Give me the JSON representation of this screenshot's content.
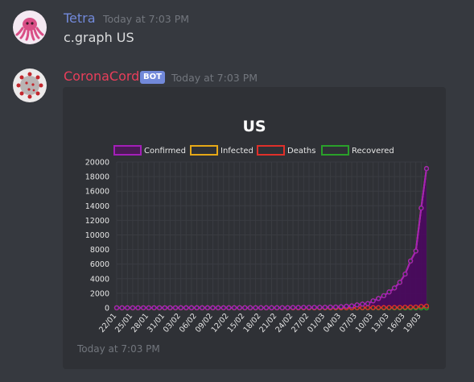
{
  "messages": [
    {
      "author": "Tetra",
      "author_color": "#7289da",
      "timestamp": "Today at 7:03 PM",
      "content": "c.graph US"
    },
    {
      "author": "CoronaCord",
      "author_color": "#e83e5a",
      "bot_tag": "BOT",
      "timestamp": "Today at 7:03 PM",
      "embed_footer": "Today at 7:03 PM"
    }
  ],
  "chart_data": {
    "type": "line",
    "title": "US",
    "categories": [
      "22/01",
      "23/01",
      "24/01",
      "25/01",
      "26/01",
      "27/01",
      "28/01",
      "29/01",
      "30/01",
      "31/01",
      "01/02",
      "02/02",
      "03/02",
      "04/02",
      "05/02",
      "06/02",
      "07/02",
      "08/02",
      "09/02",
      "10/02",
      "11/02",
      "12/02",
      "13/02",
      "14/02",
      "15/02",
      "16/02",
      "17/02",
      "18/02",
      "19/02",
      "20/02",
      "21/02",
      "22/02",
      "23/02",
      "24/02",
      "25/02",
      "26/02",
      "27/02",
      "28/02",
      "29/02",
      "01/03",
      "02/03",
      "03/03",
      "04/03",
      "05/03",
      "06/03",
      "07/03",
      "08/03",
      "09/03",
      "10/03",
      "11/03",
      "12/03",
      "13/03",
      "14/03",
      "15/03",
      "16/03",
      "17/03",
      "18/03",
      "19/03",
      "20/03"
    ],
    "tick_labels": [
      "22/01",
      "25/01",
      "28/01",
      "31/01",
      "03/02",
      "06/02",
      "09/02",
      "12/02",
      "15/02",
      "18/02",
      "21/02",
      "24/02",
      "27/02",
      "01/03",
      "04/03",
      "07/03",
      "10/03",
      "13/03",
      "16/03",
      "19/03"
    ],
    "series": [
      {
        "name": "Confirmed",
        "color": "#a31fb8",
        "values": [
          1,
          1,
          2,
          2,
          5,
          5,
          5,
          5,
          5,
          7,
          8,
          8,
          11,
          11,
          11,
          11,
          11,
          11,
          11,
          11,
          12,
          12,
          13,
          13,
          13,
          13,
          13,
          13,
          13,
          13,
          15,
          15,
          15,
          51,
          51,
          57,
          58,
          60,
          68,
          74,
          98,
          118,
          149,
          217,
          262,
          402,
          518,
          583,
          959,
          1281,
          1663,
          2179,
          2727,
          3499,
          4632,
          6421,
          7786,
          13680,
          19100
        ]
      },
      {
        "name": "Infected",
        "color": "#e6a817",
        "values": [
          1,
          1,
          2,
          2,
          5,
          5,
          5,
          5,
          5,
          7,
          8,
          8,
          11,
          11,
          11,
          11,
          11,
          11,
          11,
          11,
          12,
          12,
          13,
          13,
          13,
          13,
          13,
          13,
          13,
          13,
          15,
          15,
          15,
          51,
          51,
          57,
          58,
          60,
          68,
          74,
          98,
          118,
          149,
          217,
          262,
          402,
          518,
          583,
          959,
          1281,
          1663,
          2179,
          2727,
          3499,
          4632,
          6421,
          7786,
          13680,
          19100
        ]
      },
      {
        "name": "Deaths",
        "color": "#e0302a",
        "values": [
          0,
          0,
          0,
          0,
          0,
          0,
          0,
          0,
          0,
          0,
          0,
          0,
          0,
          0,
          0,
          0,
          0,
          0,
          0,
          0,
          0,
          0,
          0,
          0,
          0,
          0,
          0,
          0,
          0,
          0,
          0,
          0,
          0,
          0,
          0,
          0,
          0,
          0,
          1,
          1,
          6,
          7,
          11,
          12,
          14,
          17,
          21,
          22,
          28,
          36,
          40,
          47,
          54,
          63,
          85,
          108,
          118,
          200,
          244
        ]
      },
      {
        "name": "Recovered",
        "color": "#2aa02a",
        "values": [
          0,
          0,
          0,
          0,
          0,
          0,
          0,
          0,
          0,
          0,
          0,
          0,
          0,
          0,
          0,
          0,
          0,
          0,
          0,
          0,
          0,
          0,
          0,
          0,
          0,
          0,
          0,
          0,
          0,
          0,
          0,
          0,
          0,
          0,
          0,
          0,
          0,
          0,
          0,
          0,
          0,
          0,
          0,
          0,
          0,
          0,
          0,
          0,
          0,
          0,
          0,
          0,
          0,
          0,
          0,
          0,
          0,
          0,
          0
        ]
      }
    ],
    "ylim": [
      0,
      20000
    ],
    "yticks": [
      0,
      2000,
      4000,
      6000,
      8000,
      10000,
      12000,
      14000,
      16000,
      18000,
      20000
    ],
    "grid": true,
    "legend": "top"
  }
}
